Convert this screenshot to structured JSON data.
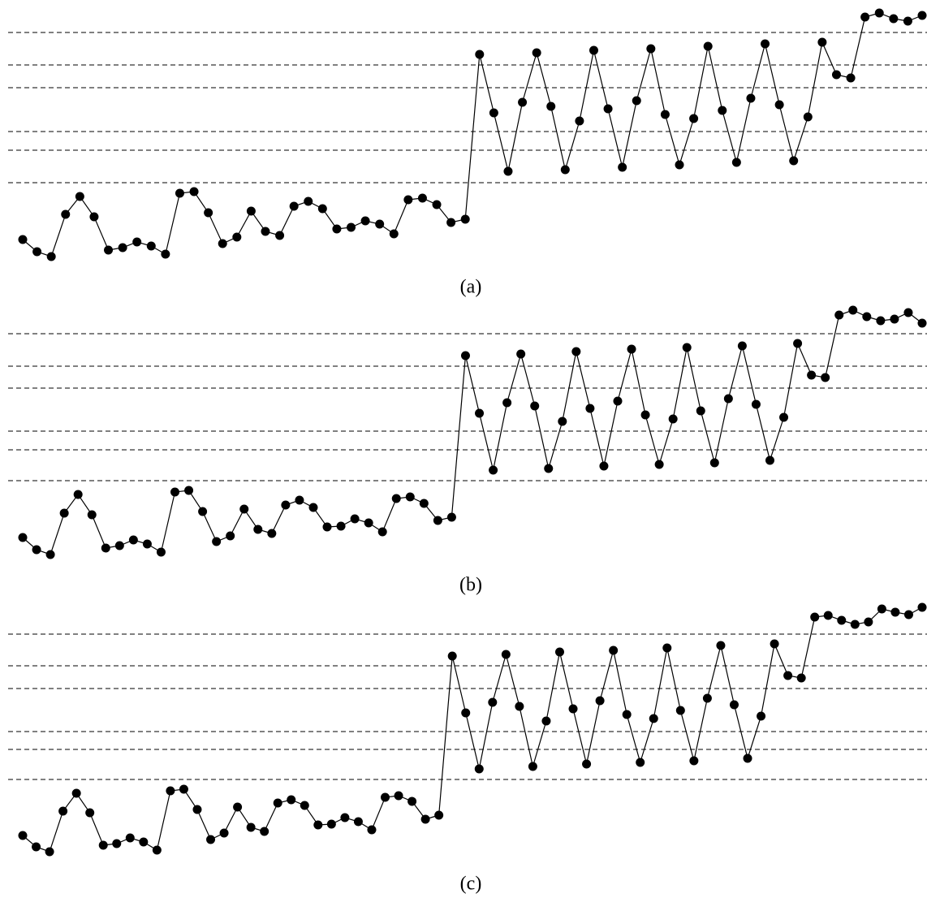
{
  "chart_data": [
    {
      "type": "line",
      "label": "(a)",
      "color": "#000000",
      "ylim": [
        0,
        330
      ],
      "hlines": [
        290,
        250,
        222,
        168,
        145,
        105
      ],
      "values": [
        35,
        20,
        14,
        66,
        88,
        63,
        22,
        25,
        32,
        27,
        17,
        92,
        94,
        68,
        30,
        38,
        70,
        45,
        40,
        76,
        82,
        73,
        48,
        50,
        58,
        54,
        42,
        84,
        86,
        78,
        56,
        60,
        263,
        191,
        119,
        204,
        265,
        199,
        121,
        181,
        268,
        196,
        124,
        206,
        270,
        189,
        127,
        184,
        273,
        194,
        130,
        209,
        276,
        201,
        132,
        186,
        278,
        238,
        234,
        309,
        314,
        307,
        304,
        311
      ]
    },
    {
      "type": "line",
      "label": "(b)",
      "color": "#000000",
      "ylim": [
        0,
        330
      ],
      "hlines": [
        287,
        247,
        220,
        167,
        144,
        106
      ],
      "values": [
        36,
        21,
        15,
        66,
        89,
        64,
        23,
        26,
        33,
        28,
        18,
        92,
        94,
        68,
        31,
        38,
        71,
        46,
        41,
        76,
        82,
        73,
        49,
        50,
        59,
        54,
        43,
        84,
        86,
        78,
        57,
        61,
        260,
        189,
        119,
        202,
        262,
        198,
        121,
        179,
        265,
        195,
        124,
        204,
        268,
        187,
        126,
        182,
        270,
        192,
        128,
        207,
        272,
        200,
        131,
        184,
        275,
        236,
        233,
        310,
        316,
        308,
        303,
        305,
        313,
        300
      ]
    },
    {
      "type": "line",
      "label": "(c)",
      "color": "#000000",
      "ylim": [
        0,
        330
      ],
      "hlines": [
        284,
        245,
        217,
        164,
        142,
        105
      ],
      "values": [
        36,
        22,
        16,
        66,
        88,
        64,
        24,
        26,
        33,
        28,
        18,
        91,
        93,
        68,
        31,
        39,
        71,
        46,
        41,
        76,
        80,
        73,
        49,
        50,
        58,
        53,
        43,
        83,
        85,
        78,
        56,
        61,
        257,
        187,
        118,
        200,
        259,
        195,
        121,
        177,
        262,
        192,
        124,
        202,
        264,
        185,
        126,
        180,
        267,
        190,
        128,
        205,
        270,
        197,
        131,
        183,
        272,
        233,
        230,
        305,
        307,
        301,
        296,
        299,
        315,
        311,
        308,
        317
      ]
    }
  ]
}
